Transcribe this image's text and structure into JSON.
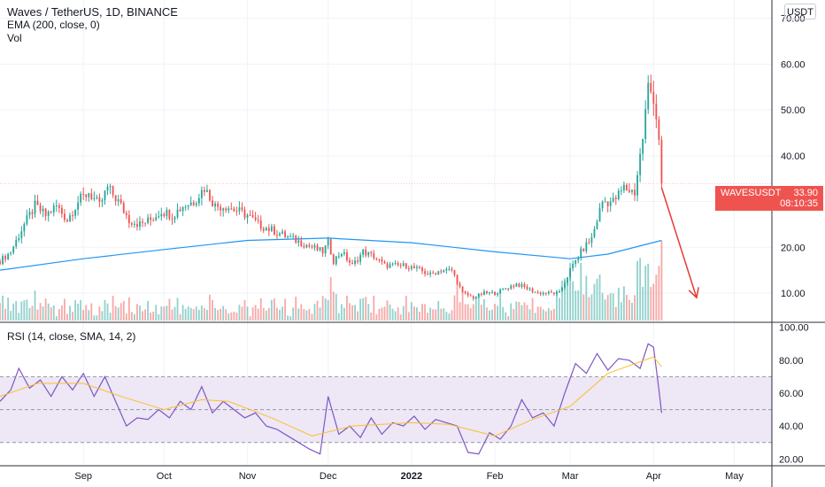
{
  "header": {
    "title": "Waves / TetherUS, 1D, BINANCE",
    "ema_label": "EMA (200, close, 0)",
    "vol_label": "Vol",
    "rsi_label": "RSI (14, close, SMA, 14, 2)",
    "currency": "USDT"
  },
  "last_price": {
    "symbol": "WAVESUSDT",
    "price": "33.90",
    "countdown": "08:10:35"
  },
  "colors": {
    "up": "#26a69a",
    "down": "#ef5350",
    "ema": "#2196f3",
    "rsi": "#7e57c2",
    "rsi_ma": "#fbc02d",
    "rsi_band": "#ede7f6",
    "arrow": "#e53935"
  },
  "chart_data": [
    {
      "type": "candlestick",
      "title": "Waves / TetherUS, 1D, BINANCE",
      "x_axis": {
        "type": "date",
        "range": [
          "2021-08-01",
          "2022-05-15"
        ],
        "ticks": [
          "Sep",
          "Oct",
          "Nov",
          "Dec",
          "2022",
          "Feb",
          "Mar",
          "Apr",
          "May"
        ]
      },
      "y_axis": {
        "unit": "USDT",
        "range": [
          4,
          74
        ],
        "ticks": [
          "10.00",
          "20.00",
          "30.00",
          "40.00",
          "50.00",
          "60.00",
          "70.00"
        ],
        "position": "right"
      },
      "price_path": [
        [
          "2021-08-01",
          17
        ],
        [
          "2021-08-05",
          19
        ],
        [
          "2021-08-10",
          25
        ],
        [
          "2021-08-14",
          29
        ],
        [
          "2021-08-18",
          27
        ],
        [
          "2021-08-22",
          29
        ],
        [
          "2021-08-26",
          26
        ],
        [
          "2021-08-30",
          30
        ],
        [
          "2021-09-03",
          32
        ],
        [
          "2021-09-07",
          29
        ],
        [
          "2021-09-10",
          33
        ],
        [
          "2021-09-14",
          30
        ],
        [
          "2021-09-18",
          26
        ],
        [
          "2021-09-22",
          25
        ],
        [
          "2021-09-26",
          26
        ],
        [
          "2021-09-30",
          28
        ],
        [
          "2021-10-04",
          27
        ],
        [
          "2021-10-08",
          29
        ],
        [
          "2021-10-12",
          30
        ],
        [
          "2021-10-16",
          33
        ],
        [
          "2021-10-20",
          29
        ],
        [
          "2021-10-24",
          29
        ],
        [
          "2021-10-28",
          28
        ],
        [
          "2021-11-01",
          27
        ],
        [
          "2021-11-05",
          25
        ],
        [
          "2021-11-09",
          24
        ],
        [
          "2021-11-13",
          23
        ],
        [
          "2021-11-17",
          22
        ],
        [
          "2021-11-21",
          21
        ],
        [
          "2021-11-25",
          20
        ],
        [
          "2021-11-29",
          19
        ],
        [
          "2021-12-01",
          21
        ],
        [
          "2021-12-03",
          17
        ],
        [
          "2021-12-06",
          19
        ],
        [
          "2021-12-10",
          16
        ],
        [
          "2021-12-14",
          19
        ],
        [
          "2021-12-18",
          18
        ],
        [
          "2021-12-22",
          16
        ],
        [
          "2021-12-26",
          16
        ],
        [
          "2021-12-30",
          16
        ],
        [
          "2022-01-04",
          15
        ],
        [
          "2022-01-08",
          14
        ],
        [
          "2022-01-12",
          15
        ],
        [
          "2022-01-16",
          15
        ],
        [
          "2022-01-20",
          10
        ],
        [
          "2022-01-24",
          9
        ],
        [
          "2022-01-28",
          10
        ],
        [
          "2022-02-01",
          10
        ],
        [
          "2022-02-05",
          11
        ],
        [
          "2022-02-09",
          12
        ],
        [
          "2022-02-13",
          11
        ],
        [
          "2022-02-17",
          10
        ],
        [
          "2022-02-21",
          10
        ],
        [
          "2022-02-25",
          10
        ],
        [
          "2022-03-01",
          15
        ],
        [
          "2022-03-05",
          19
        ],
        [
          "2022-03-09",
          22
        ],
        [
          "2022-03-13",
          30
        ],
        [
          "2022-03-17",
          30
        ],
        [
          "2022-03-21",
          33
        ],
        [
          "2022-03-25",
          32
        ],
        [
          "2022-03-28",
          44
        ],
        [
          "2022-03-30",
          55
        ],
        [
          "2022-04-01",
          53
        ],
        [
          "2022-04-03",
          44
        ],
        [
          "2022-04-04",
          33.9
        ]
      ],
      "ema_200": [
        [
          "2021-08-01",
          15
        ],
        [
          "2021-09-01",
          17.5
        ],
        [
          "2021-10-01",
          19.5
        ],
        [
          "2021-11-01",
          21.5
        ],
        [
          "2021-12-01",
          22
        ],
        [
          "2022-01-01",
          21
        ],
        [
          "2022-02-01",
          19
        ],
        [
          "2022-03-01",
          17.5
        ],
        [
          "2022-03-15",
          18.5
        ],
        [
          "2022-04-04",
          21.5
        ]
      ],
      "last_price": 33.9,
      "projection_arrow": {
        "from": [
          "2022-04-04",
          33
        ],
        "to": [
          "2022-04-17",
          9
        ]
      }
    },
    {
      "type": "line",
      "title": "RSI (14, close, SMA, 14, 2)",
      "y_axis": {
        "range": [
          18,
          102
        ],
        "ticks": [
          "20.00",
          "40.00",
          "60.00",
          "80.00",
          "100.00"
        ],
        "position": "right"
      },
      "band": {
        "upper": 70,
        "middle": 50,
        "lower": 30
      },
      "series": [
        {
          "values": [
            [
              "2021-08-01",
              55
            ],
            [
              "2021-08-05",
              62
            ],
            [
              "2021-08-08",
              75
            ],
            [
              "2021-08-12",
              63
            ],
            [
              "2021-08-16",
              68
            ],
            [
              "2021-08-20",
              58
            ],
            [
              "2021-08-24",
              70
            ],
            [
              "2021-08-28",
              62
            ],
            [
              "2021-09-01",
              72
            ],
            [
              "2021-09-05",
              58
            ],
            [
              "2021-09-09",
              70
            ],
            [
              "2021-09-13",
              55
            ],
            [
              "2021-09-17",
              40
            ],
            [
              "2021-09-21",
              45
            ],
            [
              "2021-09-25",
              44
            ],
            [
              "2021-09-29",
              50
            ],
            [
              "2021-10-03",
              45
            ],
            [
              "2021-10-07",
              55
            ],
            [
              "2021-10-11",
              50
            ],
            [
              "2021-10-15",
              64
            ],
            [
              "2021-10-19",
              48
            ],
            [
              "2021-10-23",
              55
            ],
            [
              "2021-10-27",
              50
            ],
            [
              "2021-10-31",
              45
            ],
            [
              "2021-11-04",
              48
            ],
            [
              "2021-11-08",
              40
            ],
            [
              "2021-11-12",
              38
            ],
            [
              "2021-11-16",
              34
            ],
            [
              "2021-11-20",
              30
            ],
            [
              "2021-11-24",
              26
            ],
            [
              "2021-11-28",
              23
            ],
            [
              "2021-12-01",
              58
            ],
            [
              "2021-12-05",
              35
            ],
            [
              "2021-12-09",
              40
            ],
            [
              "2021-12-13",
              33
            ],
            [
              "2021-12-17",
              45
            ],
            [
              "2021-12-21",
              35
            ],
            [
              "2021-12-25",
              42
            ],
            [
              "2021-12-29",
              40
            ],
            [
              "2022-01-02",
              46
            ],
            [
              "2022-01-06",
              38
            ],
            [
              "2022-01-10",
              44
            ],
            [
              "2022-01-14",
              42
            ],
            [
              "2022-01-18",
              40
            ],
            [
              "2022-01-22",
              24
            ],
            [
              "2022-01-26",
              23
            ],
            [
              "2022-01-30",
              36
            ],
            [
              "2022-02-03",
              32
            ],
            [
              "2022-02-07",
              40
            ],
            [
              "2022-02-11",
              56
            ],
            [
              "2022-02-15",
              45
            ],
            [
              "2022-02-19",
              48
            ],
            [
              "2022-02-23",
              40
            ],
            [
              "2022-02-27",
              60
            ],
            [
              "2022-03-03",
              78
            ],
            [
              "2022-03-07",
              72
            ],
            [
              "2022-03-11",
              84
            ],
            [
              "2022-03-15",
              74
            ],
            [
              "2022-03-19",
              81
            ],
            [
              "2022-03-23",
              80
            ],
            [
              "2022-03-27",
              75
            ],
            [
              "2022-03-30",
              90
            ],
            [
              "2022-04-01",
              88
            ],
            [
              "2022-04-03",
              62
            ],
            [
              "2022-04-04",
              48
            ]
          ]
        },
        {
          "values": [
            [
              "2021-08-01",
              58
            ],
            [
              "2021-08-15",
              66
            ],
            [
              "2021-09-01",
              66
            ],
            [
              "2021-09-15",
              58
            ],
            [
              "2021-10-01",
              50
            ],
            [
              "2021-10-15",
              56
            ],
            [
              "2021-10-25",
              55
            ],
            [
              "2021-11-10",
              45
            ],
            [
              "2021-11-25",
              34
            ],
            [
              "2021-12-10",
              40
            ],
            [
              "2022-01-01",
              42
            ],
            [
              "2022-01-15",
              41
            ],
            [
              "2022-02-01",
              34
            ],
            [
              "2022-02-15",
              44
            ],
            [
              "2022-03-01",
              52
            ],
            [
              "2022-03-15",
              72
            ],
            [
              "2022-04-01",
              82
            ],
            [
              "2022-04-04",
              76
            ]
          ]
        }
      ]
    }
  ]
}
